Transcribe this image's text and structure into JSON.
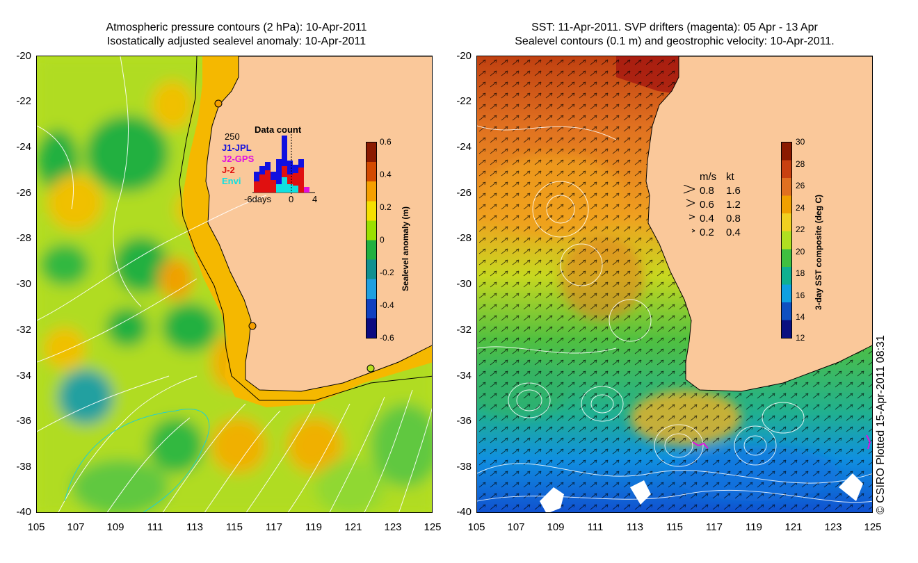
{
  "left": {
    "title_line1": "Atmospheric pressure contours (2 hPa): 10-Apr-2011",
    "title_line2": "Isostatically adjusted sealevel anomaly: 10-Apr-2011",
    "colorbar": {
      "label": "Sealevel anomaly (m)",
      "ticks": [
        "0.6",
        "0.4",
        "0.2",
        "0",
        "-0.2",
        "-0.4",
        "-0.6"
      ],
      "colors": [
        "#8b1a00",
        "#d34a00",
        "#f5a000",
        "#f5e000",
        "#9be000",
        "#1fb040",
        "#0f9090",
        "#1f9fe0",
        "#1040c0",
        "#0a0a80"
      ]
    },
    "data_count": {
      "title": "Data count",
      "max_label": "250",
      "x_labels": [
        "-6days",
        "0",
        "4"
      ],
      "missions": [
        {
          "name": "J1-JPL",
          "color": "#1010e0"
        },
        {
          "name": "J2-GPS",
          "color": "#e010e0"
        },
        {
          "name": "J-2",
          "color": "#e01010"
        },
        {
          "name": "Envi",
          "color": "#10e0e0"
        }
      ]
    }
  },
  "right": {
    "title_line1": "SST: 11-Apr-2011. SVP drifters (magenta): 05 Apr - 13 Apr",
    "title_line2": "Sealevel contours (0.1 m) and geostrophic velocity: 10-Apr-2011.",
    "colorbar": {
      "label": "3-day SST composite (deg C)",
      "ticks": [
        "30",
        "28",
        "26",
        "24",
        "22",
        "20",
        "18",
        "16",
        "14",
        "12"
      ],
      "colors": [
        "#8b1a00",
        "#c84010",
        "#e07020",
        "#f0a000",
        "#f0d020",
        "#b0e020",
        "#40c040",
        "#10b090",
        "#10a0e0",
        "#1050c0",
        "#0a1080"
      ]
    },
    "velocity_legend": {
      "units": [
        "m/s",
        "kt"
      ],
      "rows": [
        [
          "0.8",
          "1.6"
        ],
        [
          "0.6",
          "1.2"
        ],
        [
          "0.4",
          "0.8"
        ],
        [
          "0.2",
          "0.4"
        ]
      ]
    }
  },
  "axes": {
    "lat_labels": [
      "-20",
      "-22",
      "-24",
      "-26",
      "-28",
      "-30",
      "-32",
      "-34",
      "-36",
      "-38",
      "-40"
    ],
    "lon_labels": [
      "105",
      "107",
      "109",
      "111",
      "113",
      "115",
      "117",
      "119",
      "121",
      "123",
      "125"
    ]
  },
  "land_color": "#fac89a",
  "copyright": "© CSIRO Plotted 15-Apr-2011 08:31"
}
